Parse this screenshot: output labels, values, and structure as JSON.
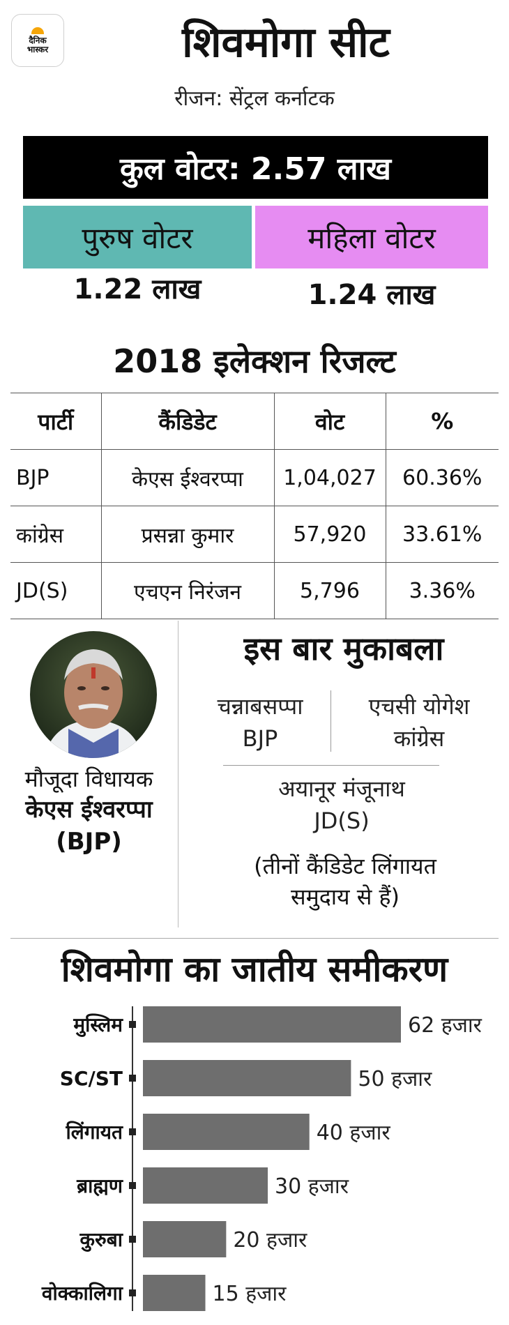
{
  "logo": {
    "line1": "दैनिक",
    "line2": "भास्कर"
  },
  "header": {
    "title": "शिवमोगा सीट",
    "region": "रीजन: सेंट्रल कर्नाटक"
  },
  "voters": {
    "total": "कुल वोटर: 2.57 लाख",
    "male_label": "पुरुष वोटर",
    "male_count": "1.22 लाख",
    "female_label": "महिला वोटर",
    "female_count": "1.24 लाख",
    "colors": {
      "male": "#5fb8b2",
      "female": "#e68cf2",
      "total_bg": "#000000"
    }
  },
  "results": {
    "title": "2018 इलेक्शन रिजल्ट",
    "headers": [
      "पार्टी",
      "कैंडिडेट",
      "वोट",
      "%"
    ],
    "rows": [
      [
        "BJP",
        "केएस ईश्वरप्पा",
        "1,04,027",
        "60.36%"
      ],
      [
        "कांग्रेस",
        "प्रसन्ना कुमार",
        "57,920",
        "33.61%"
      ],
      [
        "JD(S)",
        "एचएन निरंजन",
        "5,796",
        "3.36%"
      ]
    ]
  },
  "mla": {
    "label": "मौजूदा विधायक",
    "name": "केएस ईश्वरप्पा",
    "party": "(BJP)"
  },
  "contest": {
    "title": "इस बार मुकाबला",
    "candidates": [
      {
        "name": "चन्नाबसप्पा",
        "party": "BJP"
      },
      {
        "name": "एचसी योगेश",
        "party": "कांग्रेस"
      },
      {
        "name": "अयानूर मंजूनाथ",
        "party": "JD(S)"
      }
    ],
    "note_line1": "(तीनों कैंडिडेट लिंगायत",
    "note_line2": "समुदाय से हैं)"
  },
  "chart_data": {
    "type": "bar",
    "title": "शिवमोगा का जातीय समीकरण",
    "orientation": "horizontal",
    "unit": "हजार",
    "categories": [
      "मुस्लिम",
      "SC/ST",
      "लिंगायत",
      "ब्राह्मण",
      "कुरुबा",
      "वोक्कालिगा"
    ],
    "values": [
      62,
      50,
      40,
      30,
      20,
      15
    ],
    "data_labels": [
      "62 हजार",
      "50 हजार",
      "40 हजार",
      "30 हजार",
      "20 हजार",
      "15 हजार"
    ],
    "bar_color": "#6e6e6e"
  }
}
